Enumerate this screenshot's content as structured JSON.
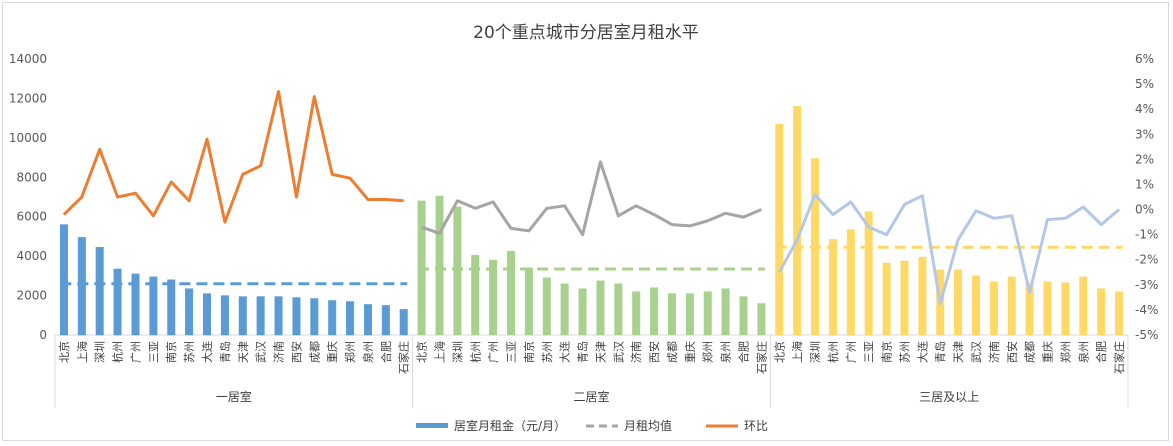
{
  "chart_data": {
    "type": "bar",
    "title": "20个重点城市分居室月租水平",
    "categories": [
      "北京",
      "上海",
      "深圳",
      "杭州",
      "广州",
      "三亚",
      "南京",
      "苏州",
      "大连",
      "青岛",
      "天津",
      "武汉",
      "济南",
      "西安",
      "成都",
      "重庆",
      "郑州",
      "泉州",
      "合肥",
      "石家庄"
    ],
    "groups": [
      {
        "name": "一居室",
        "color": "#5b9bd5",
        "rent": [
          5600,
          4950,
          4450,
          3350,
          3100,
          2950,
          2800,
          2350,
          2100,
          2000,
          1950,
          1950,
          1950,
          1900,
          1850,
          1750,
          1700,
          1550,
          1500,
          1300
        ],
        "avg": 2600,
        "mom": [
          -0.2,
          0.5,
          2.4,
          0.5,
          0.65,
          -0.25,
          1.1,
          0.35,
          2.8,
          -0.5,
          1.4,
          1.75,
          4.7,
          0.5,
          4.5,
          1.4,
          1.25,
          0.4,
          0.4,
          0.35
        ]
      },
      {
        "name": "二居室",
        "color": "#a9d18e",
        "rent": [
          6800,
          7050,
          6500,
          4050,
          3800,
          4250,
          3400,
          2900,
          2600,
          2350,
          2750,
          2600,
          2200,
          2400,
          2100,
          2100,
          2200,
          2350,
          1950,
          1600
        ],
        "avg": 3350,
        "mom": [
          -0.7,
          -0.95,
          0.35,
          0.05,
          0.3,
          -0.75,
          -0.85,
          0.05,
          0.15,
          -1.0,
          1.9,
          -0.25,
          0.15,
          -0.2,
          -0.6,
          -0.65,
          -0.45,
          -0.15,
          -0.3,
          0.0
        ],
        "mom_color": "#a5a5a5"
      },
      {
        "name": "三居及以上",
        "color": "#ffd966",
        "rent": [
          10700,
          11600,
          8950,
          4850,
          5350,
          6250,
          3650,
          3750,
          3950,
          3300,
          3300,
          3000,
          2700,
          2950,
          2600,
          2700,
          2650,
          2950,
          2350,
          2200
        ],
        "avg": 4450,
        "mom": [
          -2.5,
          -1.2,
          0.6,
          -0.2,
          0.3,
          -0.7,
          -1.0,
          0.2,
          0.55,
          -3.75,
          -1.2,
          -0.05,
          -0.35,
          -0.25,
          -3.3,
          -0.4,
          -0.35,
          0.1,
          -0.6,
          0.0
        ],
        "mom_color": "#b4c7e7"
      }
    ],
    "y_left": {
      "min": 0,
      "max": 14000,
      "step": 2000
    },
    "y_right": {
      "min": -5,
      "max": 6,
      "step": 1
    },
    "legend": {
      "position": "bottom",
      "items": [
        {
          "label": "居室月租金（元/月）",
          "color": "#5b9bd5"
        },
        {
          "label": "月租均值",
          "color": "#a5a5a5"
        },
        {
          "label": "环比",
          "color": "#ed7d31"
        }
      ]
    },
    "mom_color_default": "#ed7d31",
    "grid": false
  }
}
